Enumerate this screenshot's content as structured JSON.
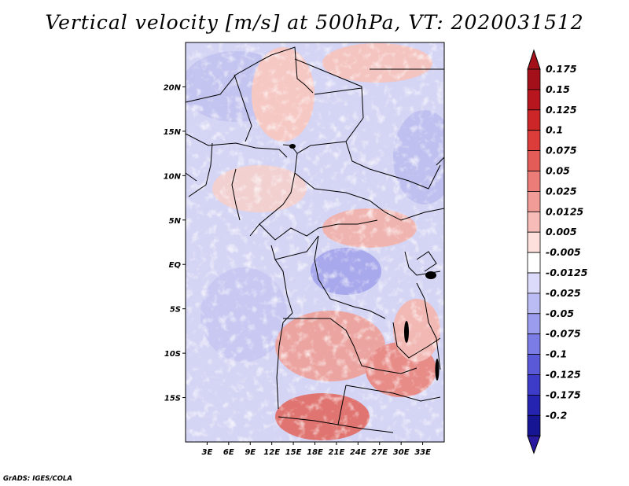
{
  "title": "Vertical velocity [m/s] at 500hPa, VT: 2020031512",
  "credit": "GrADS: IGES/COLA",
  "map": {
    "lon_range": [
      0,
      36
    ],
    "lat_range": [
      -20,
      25
    ],
    "x_ticks": [
      {
        "label": "3E",
        "value": 3
      },
      {
        "label": "6E",
        "value": 6
      },
      {
        "label": "9E",
        "value": 9
      },
      {
        "label": "12E",
        "value": 12
      },
      {
        "label": "15E",
        "value": 15
      },
      {
        "label": "18E",
        "value": 18
      },
      {
        "label": "21E",
        "value": 21
      },
      {
        "label": "24E",
        "value": 24
      },
      {
        "label": "27E",
        "value": 27
      },
      {
        "label": "30E",
        "value": 30
      },
      {
        "label": "33E",
        "value": 33
      }
    ],
    "y_ticks": [
      {
        "label": "20N",
        "value": 20
      },
      {
        "label": "15N",
        "value": 15
      },
      {
        "label": "10N",
        "value": 10
      },
      {
        "label": "5N",
        "value": 5
      },
      {
        "label": "EQ",
        "value": 0
      },
      {
        "label": "5S",
        "value": -5
      },
      {
        "label": "10S",
        "value": -10
      },
      {
        "label": "15S",
        "value": -15
      }
    ]
  },
  "colorbar": {
    "levels": [
      {
        "label": "0.175",
        "color": "#a3101a"
      },
      {
        "label": "0.15",
        "color": "#b8161e"
      },
      {
        "label": "0.125",
        "color": "#cc2628"
      },
      {
        "label": "0.1",
        "color": "#dc3c3a"
      },
      {
        "label": "0.075",
        "color": "#e45c58"
      },
      {
        "label": "0.05",
        "color": "#ec7c78"
      },
      {
        "label": "0.025",
        "color": "#f29c98"
      },
      {
        "label": "0.0125",
        "color": "#f8bcb8"
      },
      {
        "label": "0.005",
        "color": "#fde0dc"
      },
      {
        "label": "-0.005",
        "color": "#ffffff"
      },
      {
        "label": "-0.0125",
        "color": "#dcdcfa"
      },
      {
        "label": "-0.025",
        "color": "#bcbcf4"
      },
      {
        "label": "-0.05",
        "color": "#9c9cee"
      },
      {
        "label": "-0.075",
        "color": "#7c7ce6"
      },
      {
        "label": "-0.1",
        "color": "#5a5ad8"
      },
      {
        "label": "-0.125",
        "color": "#3c3cc8"
      },
      {
        "label": "-0.175",
        "color": "#2424b0"
      },
      {
        "label": "-0.2",
        "color": "#161694"
      }
    ],
    "top_arrow_color": "#a3101a",
    "bottom_arrow_color": "#2a1aa0"
  }
}
